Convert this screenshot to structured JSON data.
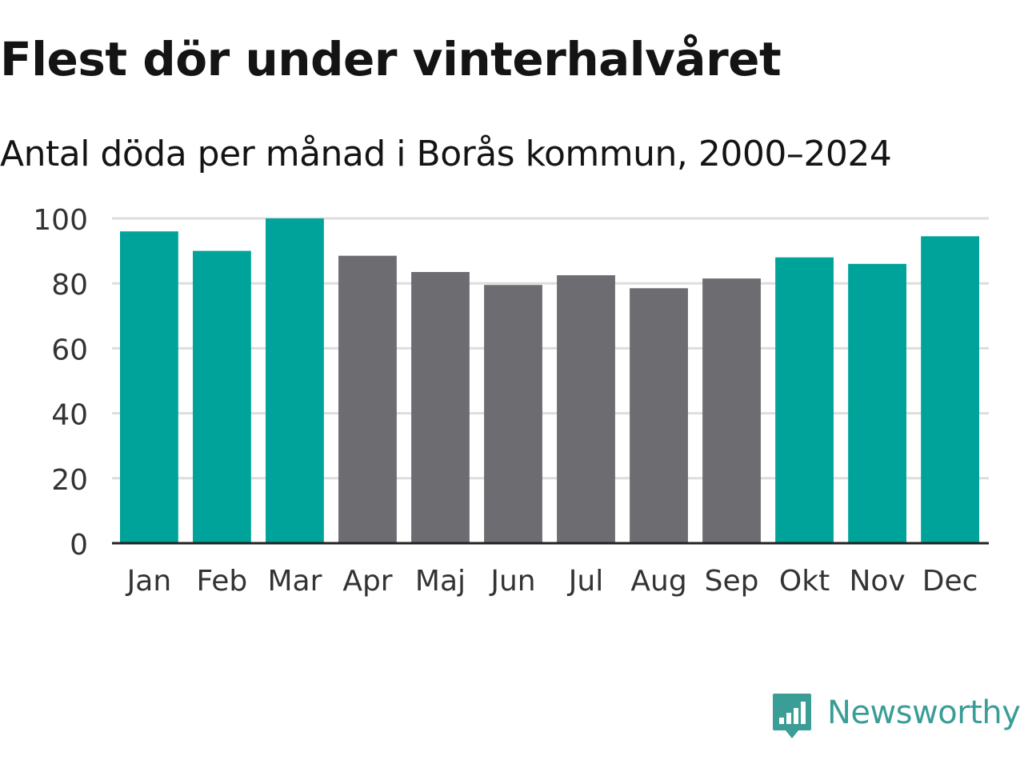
{
  "header": {
    "title": "Flest dör under vinterhalvåret",
    "subtitle": "Antal döda per månad i Borås kommun, 2000–2024"
  },
  "brand": {
    "name": "Newsworthy",
    "logo_icon": "newsworthy-bar-chart-speech-bubble-icon",
    "color": "#3a9d96"
  },
  "colors": {
    "winter": "#00a39a",
    "summer": "#6d6c71",
    "grid": "#dddddd",
    "axis": "#222222",
    "tick_text": "#333333"
  },
  "chart_data": {
    "type": "bar",
    "title": "Flest dör under vinterhalvåret",
    "subtitle": "Antal döda per månad i Borås kommun, 2000–2024",
    "xlabel": "",
    "ylabel": "",
    "categories": [
      "Jan",
      "Feb",
      "Mar",
      "Apr",
      "Maj",
      "Jun",
      "Jul",
      "Aug",
      "Sep",
      "Okt",
      "Nov",
      "Dec"
    ],
    "values": [
      96,
      90,
      100,
      88.5,
      83.5,
      79.5,
      82.5,
      78.5,
      81.5,
      88,
      86,
      94.5
    ],
    "highlight": [
      true,
      true,
      true,
      false,
      false,
      false,
      false,
      false,
      false,
      true,
      true,
      true
    ],
    "ylim": [
      0,
      100
    ],
    "yticks": [
      0,
      20,
      40,
      60,
      80,
      100
    ],
    "grid": true,
    "legend": "none"
  }
}
